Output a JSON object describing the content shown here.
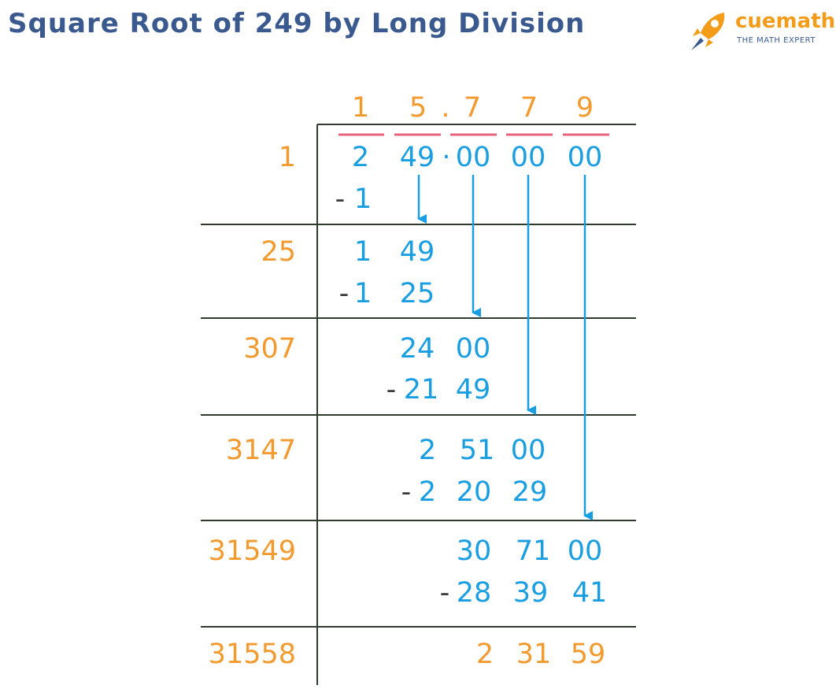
{
  "title": "Square Root of 249 by Long Division",
  "brand": {
    "name": "cuemath",
    "tagline": "THE MATH EXPERT"
  },
  "colors": {
    "title": "#3a5a8f",
    "divisor_quotient": "#f29a2e",
    "working_digits": "#199ee2",
    "minus_sign": "#3c3c3c",
    "pair_marks": "#e9627a",
    "frame_lines": "#2f3b2f"
  },
  "quotient": [
    "1",
    "5",
    ".",
    "7",
    "7",
    "9"
  ],
  "dividend_groups": [
    "2",
    "49",
    "·",
    "00",
    "00",
    "00"
  ],
  "steps": [
    {
      "divisor": "1",
      "subtrahend": [
        "1"
      ]
    },
    {
      "divisor": "25",
      "remainder": [
        "1",
        "49"
      ],
      "subtrahend": [
        "1",
        "25"
      ]
    },
    {
      "divisor": "307",
      "remainder": [
        "24",
        "00"
      ],
      "subtrahend": [
        "21",
        "49"
      ]
    },
    {
      "divisor": "3147",
      "remainder": [
        "2",
        "51",
        "00"
      ],
      "subtrahend": [
        "2",
        "20",
        "29"
      ]
    },
    {
      "divisor": "31549",
      "remainder": [
        "30",
        "71",
        "00"
      ],
      "subtrahend": [
        "28",
        "39",
        "41"
      ]
    },
    {
      "divisor": "31558",
      "remainder": [
        "2",
        "31",
        "59"
      ]
    }
  ],
  "minus": "-"
}
